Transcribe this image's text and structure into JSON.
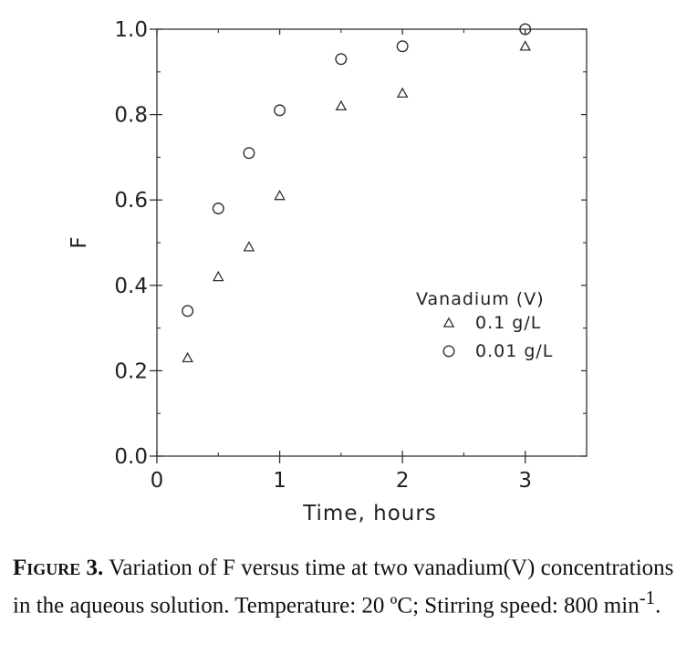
{
  "chart_data": {
    "type": "scatter",
    "title": "",
    "xlabel": "Time, hours",
    "ylabel": "F",
    "xlim": [
      0,
      3.5
    ],
    "ylim": [
      0,
      1.0
    ],
    "x_ticks": [
      0,
      1,
      2,
      3
    ],
    "x_tick_labels": [
      "0",
      "1",
      "2",
      "3"
    ],
    "y_ticks": [
      0,
      0.2,
      0.4,
      0.6,
      0.8,
      1.0
    ],
    "y_tick_labels": [
      "0.0",
      "0.2",
      "0.4",
      "0.6",
      "0.8",
      "1.0"
    ],
    "grid": false,
    "legend": {
      "title": "Vanadium (V)",
      "placement": "right-center"
    },
    "series": [
      {
        "name": "0.1 g/L",
        "marker": "triangle",
        "x": [
          0.25,
          0.5,
          0.75,
          1.0,
          1.5,
          2.0,
          3.0
        ],
        "y": [
          0.23,
          0.42,
          0.49,
          0.61,
          0.82,
          0.85,
          0.96
        ]
      },
      {
        "name": "0.01 g/L",
        "marker": "circle",
        "x": [
          0.25,
          0.5,
          0.75,
          1.0,
          1.5,
          2.0,
          3.0
        ],
        "y": [
          0.34,
          0.58,
          0.71,
          0.81,
          0.93,
          0.96,
          1.0
        ]
      }
    ]
  },
  "caption": {
    "label": "Figure 3.",
    "text": "Variation of F versus time at two vanadium(V) concentrations in the aqueous solution. Temperature: 20 ºC; Stirring speed: 800 min",
    "superscript": "-1",
    "end": "."
  }
}
